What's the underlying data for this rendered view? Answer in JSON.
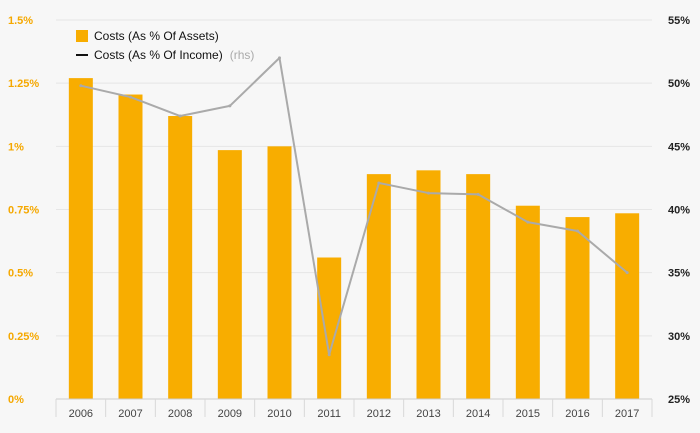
{
  "chart_data": {
    "type": "bar",
    "categories": [
      "2006",
      "2007",
      "2008",
      "2009",
      "2010",
      "2011",
      "2012",
      "2013",
      "2014",
      "2015",
      "2016",
      "2017"
    ],
    "series": [
      {
        "name": "Costs (As % Of Assets)",
        "kind": "bar",
        "axis": "left",
        "color": "#f8ad00",
        "values": [
          1.27,
          1.205,
          1.12,
          0.985,
          1.0,
          0.56,
          0.89,
          0.905,
          0.89,
          0.765,
          0.72,
          0.735
        ]
      },
      {
        "name": "Costs (As % Of Income)",
        "kind": "line",
        "axis": "right",
        "color": "#aaaaaa",
        "values": [
          49.8,
          48.9,
          47.4,
          48.2,
          52.0,
          28.5,
          42.1,
          41.3,
          41.2,
          39.0,
          38.3,
          35.0
        ]
      }
    ],
    "y_left": {
      "ylim": [
        0,
        1.5
      ],
      "ticks": [
        0,
        0.25,
        0.5,
        0.75,
        1,
        1.25,
        1.5
      ],
      "tick_labels": [
        "0%",
        "0.25%",
        "0.5%",
        "0.75%",
        "1%",
        "1.25%",
        "1.5%"
      ]
    },
    "y_right": {
      "ylim": [
        25,
        55
      ],
      "ticks": [
        25,
        30,
        35,
        40,
        45,
        50,
        55
      ],
      "tick_labels": [
        "25%",
        "30%",
        "35%",
        "40%",
        "45%",
        "50%",
        "55%"
      ]
    },
    "legend": {
      "placement": "top-left",
      "entries": [
        {
          "label": "Costs (As % Of Assets)",
          "note": ""
        },
        {
          "label": "Costs (As % Of Income)",
          "note": "(rhs)"
        }
      ]
    },
    "grid": true,
    "colors": {
      "bar": "#f8ad00",
      "line": "#aaaaaa",
      "left_axis_text": "#f5a800",
      "grid": "#e6e6e6"
    }
  }
}
